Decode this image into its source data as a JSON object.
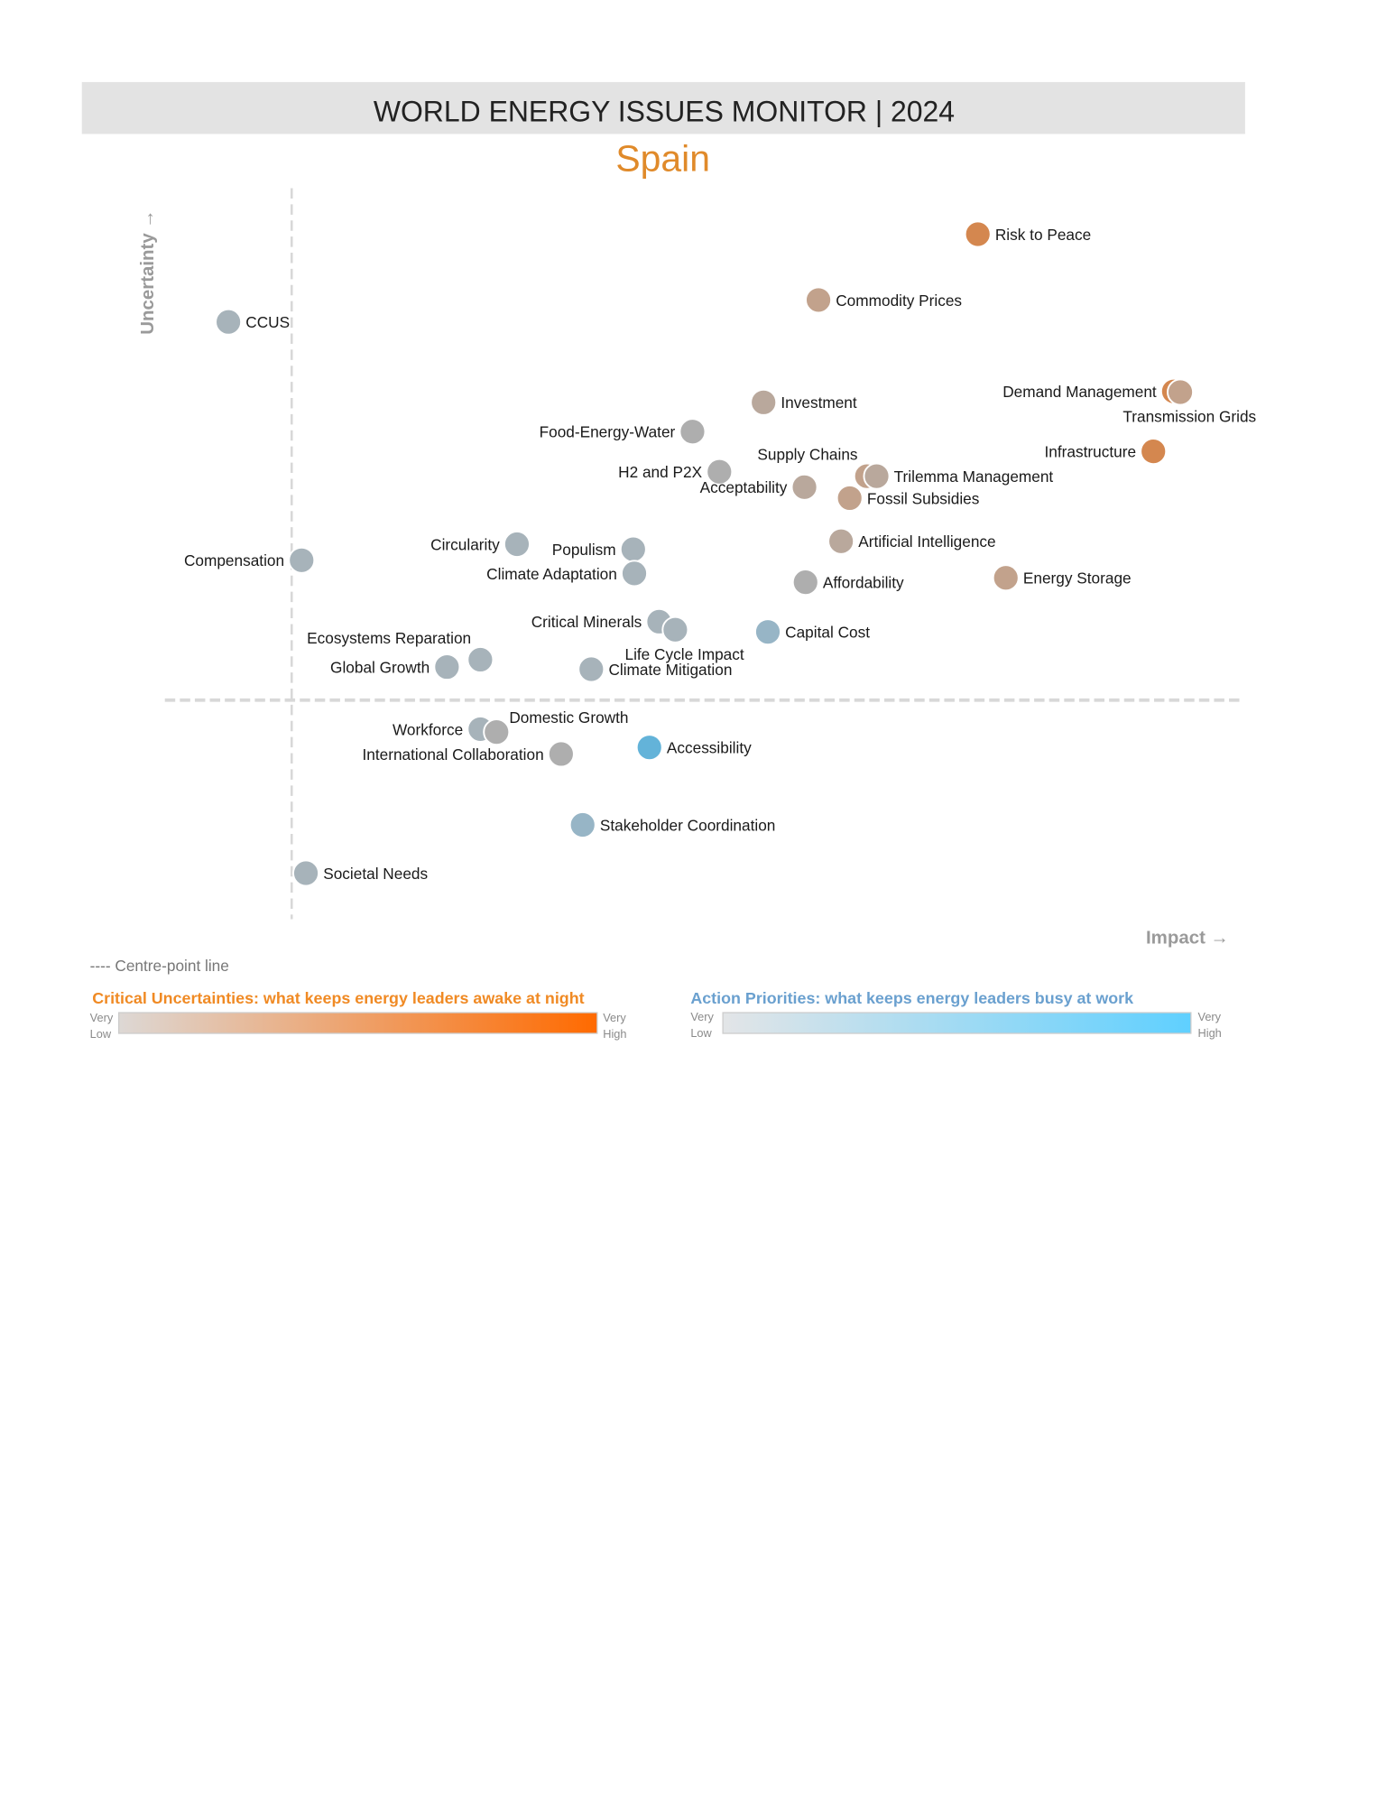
{
  "header": {
    "title": "WORLD ENERGY ISSUES MONITOR | 2024",
    "country": "Spain"
  },
  "colors": {
    "orange": "#d4874f",
    "tan": "#c2a28c",
    "taupe": "#b9a89c",
    "gray": "#aeaeae",
    "slate": "#a7b3ba",
    "steel": "#97b5c6",
    "blue": "#63b3d9",
    "header_bg": "#e3e3e3",
    "country": "#e08a2a"
  },
  "chart_data": {
    "type": "scatter",
    "title": "WORLD ENERGY ISSUES MONITOR | 2024",
    "subtitle": "Spain",
    "xlabel": "Impact →",
    "ylabel": "Uncertainty →",
    "xlim": [
      0,
      100
    ],
    "ylim": [
      0,
      100
    ],
    "centre_point": {
      "impact": 11.8,
      "uncertainty": 30.0,
      "legend": "---- Centre-point line"
    },
    "points": [
      {
        "name": "Risk to Peace",
        "impact": 75.5,
        "uncertainty": 93.7,
        "color": "orange",
        "label": "right"
      },
      {
        "name": "Commodity Prices",
        "impact": 60.7,
        "uncertainty": 84.7,
        "color": "tan",
        "label": "right"
      },
      {
        "name": "CCUS",
        "impact": 5.9,
        "uncertainty": 81.7,
        "color": "slate",
        "label": "right"
      },
      {
        "name": "Demand Management",
        "impact": 93.7,
        "uncertainty": 72.2,
        "color": "orange",
        "label": "left"
      },
      {
        "name": "Transmission Grids",
        "impact": 94.3,
        "uncertainty": 72.1,
        "color": "tan",
        "label": "below"
      },
      {
        "name": "Investment",
        "impact": 55.6,
        "uncertainty": 70.7,
        "color": "taupe",
        "label": "right"
      },
      {
        "name": "Food-Energy-Water",
        "impact": 49.0,
        "uncertainty": 66.7,
        "color": "gray",
        "label": "left"
      },
      {
        "name": "Infrastructure",
        "impact": 91.8,
        "uncertainty": 64.0,
        "color": "orange",
        "label": "left"
      },
      {
        "name": "H2 and P2X",
        "impact": 51.5,
        "uncertainty": 61.2,
        "color": "gray",
        "label": "left"
      },
      {
        "name": "Acceptability",
        "impact": 59.4,
        "uncertainty": 59.1,
        "color": "taupe",
        "label": "left"
      },
      {
        "name": "Supply Chains",
        "impact": 65.2,
        "uncertainty": 60.6,
        "color": "tan",
        "label": "above-left"
      },
      {
        "name": "Trilemma Management",
        "impact": 66.1,
        "uncertainty": 60.6,
        "color": "taupe",
        "label": "right"
      },
      {
        "name": "Fossil Subsidies",
        "impact": 63.6,
        "uncertainty": 57.6,
        "color": "tan",
        "label": "right"
      },
      {
        "name": "Artificial Intelligence",
        "impact": 62.8,
        "uncertainty": 51.7,
        "color": "taupe",
        "label": "right"
      },
      {
        "name": "Circularity",
        "impact": 32.7,
        "uncertainty": 51.3,
        "color": "slate",
        "label": "left"
      },
      {
        "name": "Populism",
        "impact": 43.5,
        "uncertainty": 50.6,
        "color": "slate",
        "label": "left"
      },
      {
        "name": "Compensation",
        "impact": 12.7,
        "uncertainty": 49.1,
        "color": "slate",
        "label": "left"
      },
      {
        "name": "Climate Adaptation",
        "impact": 43.6,
        "uncertainty": 47.3,
        "color": "slate",
        "label": "left"
      },
      {
        "name": "Affordability",
        "impact": 59.5,
        "uncertainty": 46.1,
        "color": "gray",
        "label": "right"
      },
      {
        "name": "Energy Storage",
        "impact": 78.1,
        "uncertainty": 46.7,
        "color": "tan",
        "label": "right"
      },
      {
        "name": "Critical Minerals",
        "impact": 45.9,
        "uncertainty": 40.7,
        "color": "slate",
        "label": "left"
      },
      {
        "name": "Life Cycle Impact",
        "impact": 47.4,
        "uncertainty": 39.6,
        "color": "slate",
        "label": "below"
      },
      {
        "name": "Capital Cost",
        "impact": 56.0,
        "uncertainty": 39.3,
        "color": "steel",
        "label": "right"
      },
      {
        "name": "Ecosystems Reparation",
        "impact": 29.3,
        "uncertainty": 35.5,
        "color": "slate",
        "label": "above-left"
      },
      {
        "name": "Global Growth",
        "impact": 26.2,
        "uncertainty": 34.5,
        "color": "slate",
        "label": "left"
      },
      {
        "name": "Climate Mitigation",
        "impact": 39.6,
        "uncertainty": 34.2,
        "color": "slate",
        "label": "right"
      },
      {
        "name": "Workforce",
        "impact": 29.3,
        "uncertainty": 26.0,
        "color": "slate",
        "label": "left"
      },
      {
        "name": "Domestic Growth",
        "impact": 30.8,
        "uncertainty": 25.6,
        "color": "gray",
        "label": "above-right"
      },
      {
        "name": "International Collaboration",
        "impact": 36.8,
        "uncertainty": 22.6,
        "color": "gray",
        "label": "left"
      },
      {
        "name": "Accessibility",
        "impact": 45.0,
        "uncertainty": 23.5,
        "color": "blue",
        "label": "right"
      },
      {
        "name": "Stakeholder Coordination",
        "impact": 38.8,
        "uncertainty": 12.9,
        "color": "steel",
        "label": "right"
      },
      {
        "name": "Societal Needs",
        "impact": 13.1,
        "uncertainty": 6.3,
        "color": "slate",
        "label": "right"
      }
    ]
  },
  "legend": {
    "centre_line": "---- Centre-point line",
    "uncertainties": {
      "title": "Critical Uncertainties: what keeps energy leaders awake at night",
      "low1": "Very",
      "low2": "Low",
      "high1": "Very",
      "high2": "High",
      "color": "#f08a24"
    },
    "priorities": {
      "title": "Action Priorities: what keeps energy leaders busy at work",
      "low1": "Very",
      "low2": "Low",
      "high1": "Very",
      "high2": "High",
      "color": "#6aa0cf"
    }
  }
}
